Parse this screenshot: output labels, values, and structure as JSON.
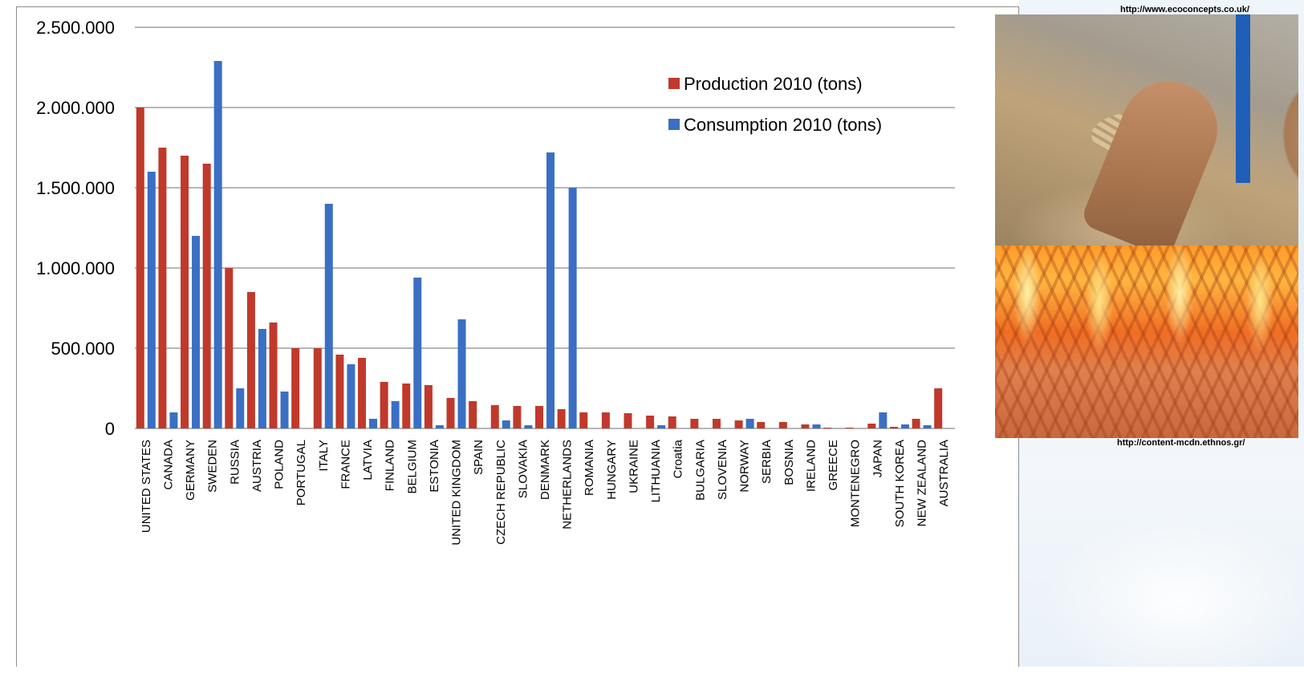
{
  "credits": {
    "top": "http://www.ecoconcepts.co.uk/",
    "bottom": "http://content-mcdn.ethnos.gr/"
  },
  "colors": {
    "production": "#c0392b",
    "consumption": "#3a6fc4",
    "gridline": "#8c8c8c"
  },
  "chart_data": {
    "type": "bar",
    "title": "",
    "xlabel": "",
    "ylabel": "",
    "ylim": [
      0,
      2500000
    ],
    "yticks": [
      0,
      500000,
      1000000,
      1500000,
      2000000,
      2500000
    ],
    "ytick_labels": [
      "0",
      "500.000",
      "1.000.000",
      "1.500.000",
      "2.000.000",
      "2.500.000"
    ],
    "grid": true,
    "legend_position": "top-right",
    "categories": [
      "UNITED STATES",
      "CANADA",
      "GERMANY",
      "SWEDEN",
      "RUSSIA",
      "AUSTRIA",
      "POLAND",
      "PORTUGAL",
      "ITALY",
      "FRANCE",
      "LATVIA",
      "FINLAND",
      "BELGIUM",
      "ESTONIA",
      "UNITED KINGDOM",
      "SPAIN",
      "CZECH REPUBLIC",
      "SLOVAKIA",
      "DENMARK",
      "NETHERLANDS",
      "ROMANIA",
      "HUNGARY",
      "UKRAINE",
      "LITHUANIA",
      "Croatia",
      "BULGARIA",
      "SLOVENIA",
      "NORWAY",
      "SERBIA",
      "BOSNIA",
      "IRELAND",
      "GREECE",
      "MONTENEGRO",
      "JAPAN",
      "SOUTH KOREA",
      "NEW ZEALAND",
      "AUSTRALIA"
    ],
    "series": [
      {
        "name": "Production 2010 (tons)",
        "values": [
          2000000,
          1750000,
          1700000,
          1650000,
          1000000,
          850000,
          660000,
          500000,
          500000,
          460000,
          440000,
          290000,
          280000,
          270000,
          190000,
          170000,
          145000,
          140000,
          140000,
          120000,
          100000,
          100000,
          95000,
          80000,
          75000,
          60000,
          60000,
          50000,
          40000,
          40000,
          25000,
          5000,
          5000,
          30000,
          10000,
          60000,
          250000
        ]
      },
      {
        "name": "Consumption 2010 (tons)",
        "values": [
          1600000,
          100000,
          1200000,
          2290000,
          250000,
          620000,
          230000,
          0,
          1400000,
          400000,
          60000,
          170000,
          940000,
          20000,
          680000,
          0,
          50000,
          20000,
          1720000,
          1500000,
          0,
          0,
          0,
          20000,
          0,
          0,
          0,
          60000,
          0,
          0,
          25000,
          0,
          0,
          100000,
          25000,
          20000,
          0
        ]
      }
    ]
  }
}
